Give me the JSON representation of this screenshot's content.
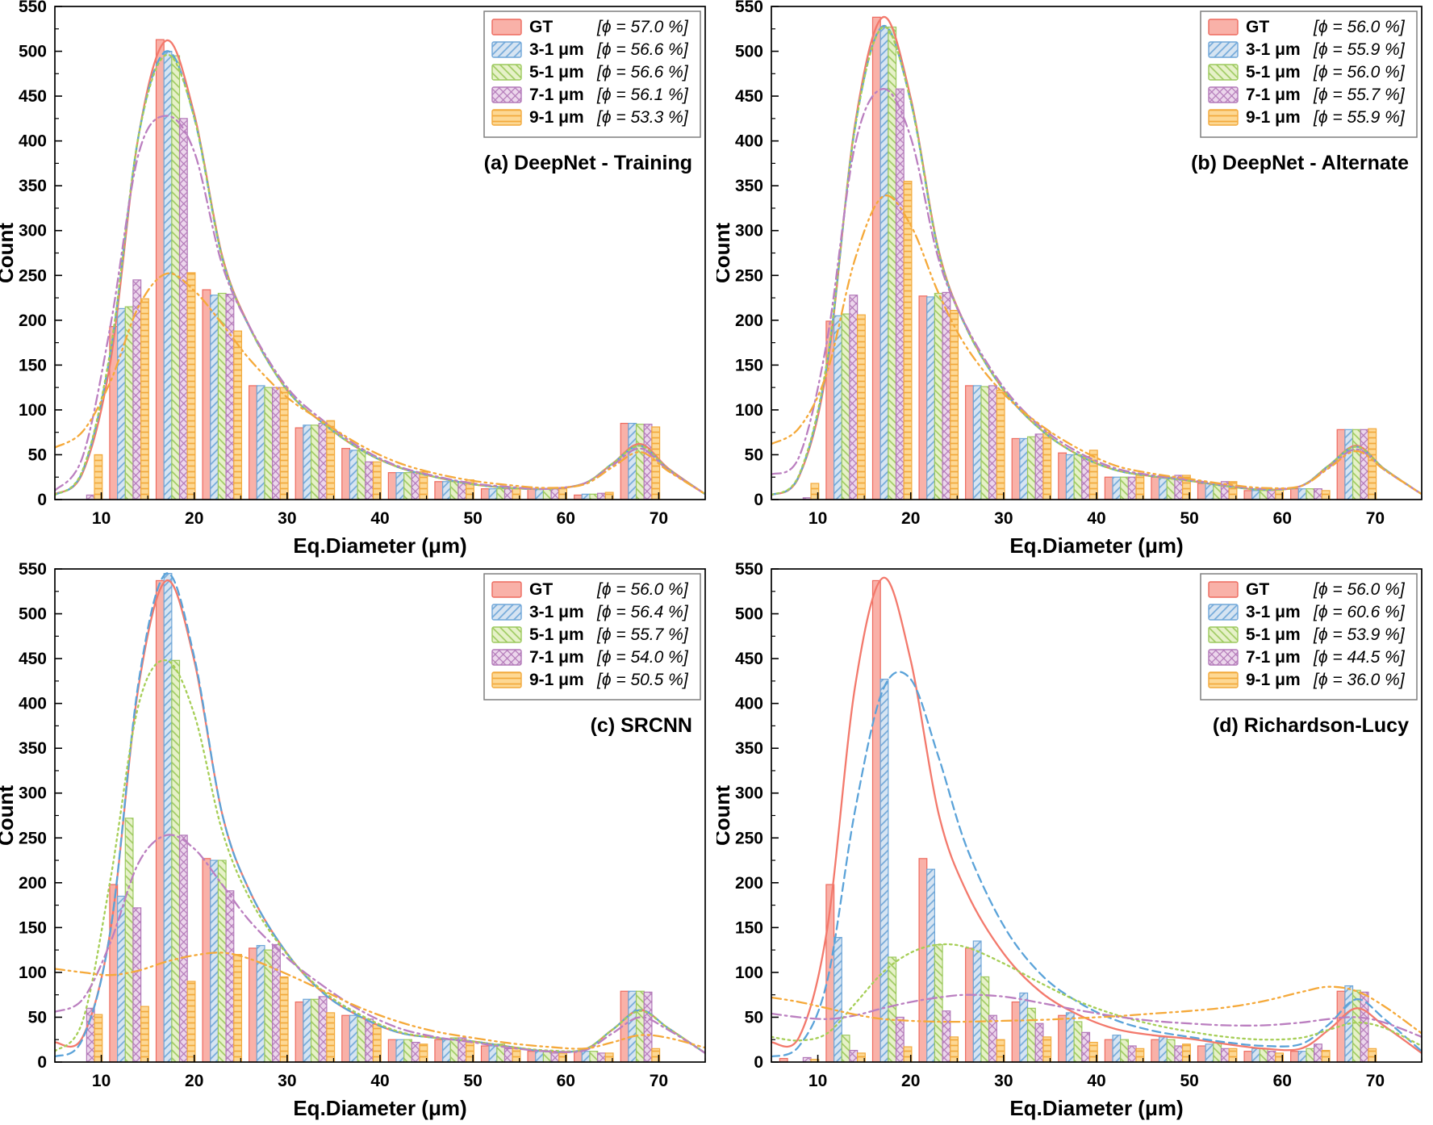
{
  "axes": {
    "xlabel": "Eq.Diameter (μm)",
    "ylabel": "Count",
    "xlim": [
      5,
      75
    ],
    "ylim": [
      0,
      550
    ],
    "xticks": [
      10,
      20,
      30,
      40,
      50,
      60,
      70
    ],
    "yticks": [
      0,
      50,
      100,
      150,
      200,
      250,
      300,
      350,
      400,
      450,
      500,
      550
    ],
    "x_minor_step": 5,
    "y_minor_step": 25
  },
  "styles": {
    "series": [
      {
        "id": "gt",
        "name": "GT",
        "fill": "#f9b1a8",
        "edge": "#ed6a5e",
        "line": "#f3796c",
        "dash": "",
        "hatch": "none"
      },
      {
        "id": "3-1um",
        "name": "3-1 μm",
        "fill": "#d6e4f2",
        "edge": "#6ea6d8",
        "line": "#5ba3d9",
        "dash": "10 6",
        "hatch": "diag-left"
      },
      {
        "id": "5-1um",
        "name": "5-1 μm",
        "fill": "#e6f1c8",
        "edge": "#9cc95d",
        "line": "#a6ce56",
        "dash": "2.5 4.5",
        "hatch": "diag-right"
      },
      {
        "id": "7-1um",
        "name": "7-1 μm",
        "fill": "#ecd6ec",
        "edge": "#b278b8",
        "line": "#bb7fc0",
        "dash": "12 5 2.5 5",
        "hatch": "cross"
      },
      {
        "id": "9-1um",
        "name": "9-1 μm",
        "fill": "#fdd894",
        "edge": "#f2a93b",
        "line": "#f5a93a",
        "dash": "12 5 2.5 5 2.5 5",
        "hatch": "horiz"
      }
    ]
  },
  "bins": [
    8,
    13,
    18,
    23,
    28,
    33,
    38,
    43,
    48,
    53,
    58,
    63,
    68
  ],
  "curve_x": [
    5,
    8,
    11,
    14,
    17,
    20,
    23,
    26,
    30,
    34,
    38,
    42,
    46,
    50,
    54,
    58,
    62,
    65,
    68,
    71,
    75
  ],
  "chart_data": [
    {
      "type": "bar",
      "title": "(a) DeepNet - Training",
      "series": [
        {
          "name": "GT",
          "legend_phi": "[ϕ = 57.0 %]",
          "values": [
            0,
            193,
            513,
            234,
            127,
            80,
            57,
            30,
            20,
            12,
            12,
            5,
            85
          ],
          "curve": [
            6,
            30,
            155,
            405,
            512,
            430,
            272,
            192,
            122,
            84,
            55,
            36,
            25,
            17,
            13,
            12,
            18,
            40,
            62,
            35,
            6
          ]
        },
        {
          "name": "3-1 μm",
          "legend_phi": "[ϕ = 56.6 %]",
          "values": [
            0,
            213,
            500,
            228,
            127,
            83,
            55,
            30,
            20,
            12,
            12,
            6,
            85
          ],
          "curve": [
            5,
            32,
            165,
            405,
            500,
            426,
            270,
            191,
            122,
            84,
            55,
            36,
            25,
            17,
            13,
            12,
            18,
            40,
            60,
            34,
            6
          ]
        },
        {
          "name": "5-1 μm",
          "legend_phi": "[ϕ = 56.6 %]",
          "values": [
            0,
            215,
            495,
            230,
            125,
            83,
            55,
            30,
            20,
            12,
            12,
            6,
            84
          ],
          "curve": [
            5,
            33,
            168,
            405,
            496,
            426,
            270,
            191,
            122,
            84,
            55,
            36,
            25,
            17,
            13,
            12,
            18,
            40,
            60,
            34,
            6
          ]
        },
        {
          "name": "7-1 μm",
          "legend_phi": "[ϕ = 56.1 %]",
          "values": [
            5,
            245,
            425,
            229,
            125,
            85,
            42,
            30,
            20,
            12,
            12,
            7,
            84
          ],
          "curve": [
            10,
            48,
            195,
            385,
            428,
            388,
            262,
            192,
            125,
            87,
            57,
            37,
            26,
            18,
            14,
            12,
            18,
            38,
            57,
            33,
            6
          ]
        },
        {
          "name": "9-1 μm",
          "legend_phi": "[ϕ = 53.3 %]",
          "values": [
            50,
            224,
            253,
            188,
            125,
            88,
            42,
            31,
            22,
            13,
            13,
            8,
            81
          ],
          "curve": [
            58,
            76,
            132,
            215,
            252,
            233,
            196,
            156,
            114,
            86,
            60,
            41,
            29,
            21,
            16,
            13,
            17,
            36,
            53,
            32,
            6
          ]
        }
      ]
    },
    {
      "type": "bar",
      "title": "(b) DeepNet - Alternate",
      "series": [
        {
          "name": "GT",
          "legend_phi": "[ϕ = 56.0 %]",
          "values": [
            0,
            199,
            538,
            227,
            127,
            68,
            52,
            25,
            25,
            18,
            10,
            12,
            78
          ],
          "curve": [
            5,
            26,
            148,
            418,
            538,
            448,
            278,
            192,
            122,
            78,
            50,
            33,
            26,
            21,
            15,
            11,
            15,
            38,
            60,
            34,
            6
          ]
        },
        {
          "name": "3-1 μm",
          "legend_phi": "[ϕ = 55.9 %]",
          "values": [
            0,
            205,
            527,
            226,
            127,
            68,
            50,
            25,
            25,
            18,
            10,
            12,
            78
          ],
          "curve": [
            5,
            27,
            152,
            414,
            528,
            444,
            276,
            191,
            122,
            78,
            50,
            33,
            26,
            21,
            15,
            11,
            15,
            38,
            59,
            34,
            6
          ]
        },
        {
          "name": "5-1 μm",
          "legend_phi": "[ϕ = 56.0 %]",
          "values": [
            0,
            207,
            527,
            230,
            126,
            70,
            50,
            25,
            25,
            18,
            10,
            12,
            78
          ],
          "curve": [
            5,
            28,
            155,
            414,
            527,
            444,
            276,
            191,
            122,
            78,
            50,
            33,
            26,
            21,
            15,
            11,
            15,
            38,
            59,
            34,
            6
          ]
        },
        {
          "name": "7-1 μm",
          "legend_phi": "[ϕ = 55.7 %]",
          "values": [
            2,
            228,
            458,
            231,
            127,
            73,
            48,
            25,
            27,
            20,
            10,
            12,
            78
          ],
          "curve": [
            28,
            48,
            178,
            395,
            458,
            404,
            268,
            193,
            125,
            81,
            53,
            35,
            27,
            22,
            16,
            12,
            15,
            36,
            56,
            33,
            6
          ]
        },
        {
          "name": "9-1 μm",
          "legend_phi": "[ϕ = 55.9 %]",
          "values": [
            18,
            206,
            355,
            211,
            122,
            75,
            55,
            27,
            27,
            20,
            12,
            10,
            79
          ],
          "curve": [
            62,
            80,
            142,
            268,
            338,
            306,
            230,
            170,
            118,
            83,
            57,
            38,
            29,
            23,
            17,
            13,
            15,
            35,
            54,
            33,
            6
          ]
        }
      ]
    },
    {
      "type": "bar",
      "title": "(c) SRCNN",
      "series": [
        {
          "name": "GT",
          "legend_phi": "[ϕ = 56.0 %]",
          "values": [
            0,
            198,
            537,
            227,
            127,
            67,
            52,
            25,
            25,
            18,
            12,
            12,
            79
          ],
          "curve": [
            22,
            28,
            148,
            418,
            537,
            448,
            277,
            190,
            121,
            76,
            50,
            33,
            27,
            23,
            17,
            12,
            14,
            36,
            58,
            38,
            10
          ]
        },
        {
          "name": "3-1 μm",
          "legend_phi": "[ϕ = 56.4 %]",
          "values": [
            0,
            185,
            545,
            225,
            130,
            70,
            52,
            25,
            25,
            18,
            12,
            12,
            79
          ],
          "curve": [
            6,
            26,
            148,
            423,
            545,
            452,
            277,
            190,
            121,
            76,
            50,
            33,
            27,
            23,
            17,
            12,
            14,
            36,
            58,
            38,
            10
          ]
        },
        {
          "name": "5-1 μm",
          "legend_phi": "[ϕ = 55.7 %]",
          "values": [
            0,
            272,
            448,
            225,
            125,
            70,
            50,
            25,
            27,
            20,
            12,
            12,
            79
          ],
          "curve": [
            12,
            46,
            205,
            398,
            448,
            388,
            258,
            182,
            120,
            78,
            52,
            34,
            27,
            23,
            17,
            13,
            14,
            36,
            57,
            38,
            10
          ]
        },
        {
          "name": "7-1 μm",
          "legend_phi": "[ϕ = 54.0 %]",
          "values": [
            60,
            172,
            253,
            191,
            131,
            73,
            48,
            22,
            27,
            15,
            10,
            10,
            78
          ],
          "curve": [
            56,
            70,
            134,
            222,
            253,
            238,
            198,
            157,
            116,
            84,
            57,
            38,
            28,
            22,
            16,
            12,
            13,
            32,
            50,
            36,
            10
          ]
        },
        {
          "name": "9-1 μm",
          "legend_phi": "[ϕ = 50.5 %]",
          "values": [
            53,
            62,
            90,
            120,
            95,
            55,
            42,
            20,
            22,
            15,
            10,
            10,
            15
          ],
          "curve": [
            104,
            100,
            97,
            102,
            112,
            119,
            122,
            115,
            98,
            79,
            60,
            45,
            34,
            27,
            21,
            17,
            15,
            22,
            30,
            27,
            16
          ]
        }
      ]
    },
    {
      "type": "bar",
      "title": "(d) Richardson-Lucy",
      "series": [
        {
          "name": "GT",
          "legend_phi": "[ϕ = 56.0 %]",
          "values": [
            4,
            198,
            537,
            227,
            127,
            67,
            52,
            25,
            25,
            18,
            12,
            12,
            79
          ],
          "curve": [
            22,
            28,
            148,
            418,
            540,
            448,
            277,
            190,
            121,
            78,
            53,
            37,
            30,
            26,
            20,
            15,
            15,
            36,
            60,
            40,
            10
          ]
        },
        {
          "name": "3-1 μm",
          "legend_phi": "[ϕ = 60.6 %]",
          "values": [
            0,
            139,
            427,
            215,
            135,
            77,
            55,
            30,
            28,
            20,
            15,
            12,
            85
          ],
          "curve": [
            6,
            18,
            90,
            280,
            415,
            427,
            340,
            240,
            152,
            98,
            67,
            47,
            35,
            28,
            22,
            18,
            20,
            42,
            70,
            48,
            12
          ]
        },
        {
          "name": "5-1 μm",
          "legend_phi": "[ϕ = 53.9 %]",
          "values": [
            0,
            30,
            117,
            131,
            95,
            60,
            45,
            25,
            25,
            22,
            15,
            15,
            80
          ],
          "curve": [
            28,
            24,
            32,
            65,
            100,
            122,
            131,
            128,
            110,
            88,
            68,
            53,
            42,
            34,
            28,
            25,
            27,
            36,
            44,
            38,
            18
          ]
        },
        {
          "name": "7-1 μm",
          "legend_phi": "[ϕ = 44.5 %]",
          "values": [
            5,
            13,
            50,
            57,
            52,
            43,
            33,
            18,
            18,
            15,
            12,
            20,
            78
          ],
          "curve": [
            54,
            50,
            48,
            52,
            60,
            67,
            72,
            75,
            73,
            66,
            58,
            51,
            46,
            43,
            41,
            41,
            44,
            48,
            50,
            44,
            28
          ]
        },
        {
          "name": "9-1 μm",
          "legend_phi": "[ϕ = 36.0 %]",
          "values": [
            3,
            10,
            17,
            28,
            25,
            28,
            22,
            15,
            20,
            15,
            10,
            13,
            15
          ],
          "curve": [
            72,
            67,
            60,
            53,
            48,
            46,
            45,
            45,
            46,
            47,
            49,
            51,
            54,
            57,
            61,
            68,
            78,
            84,
            79,
            62,
            32
          ]
        }
      ]
    }
  ]
}
